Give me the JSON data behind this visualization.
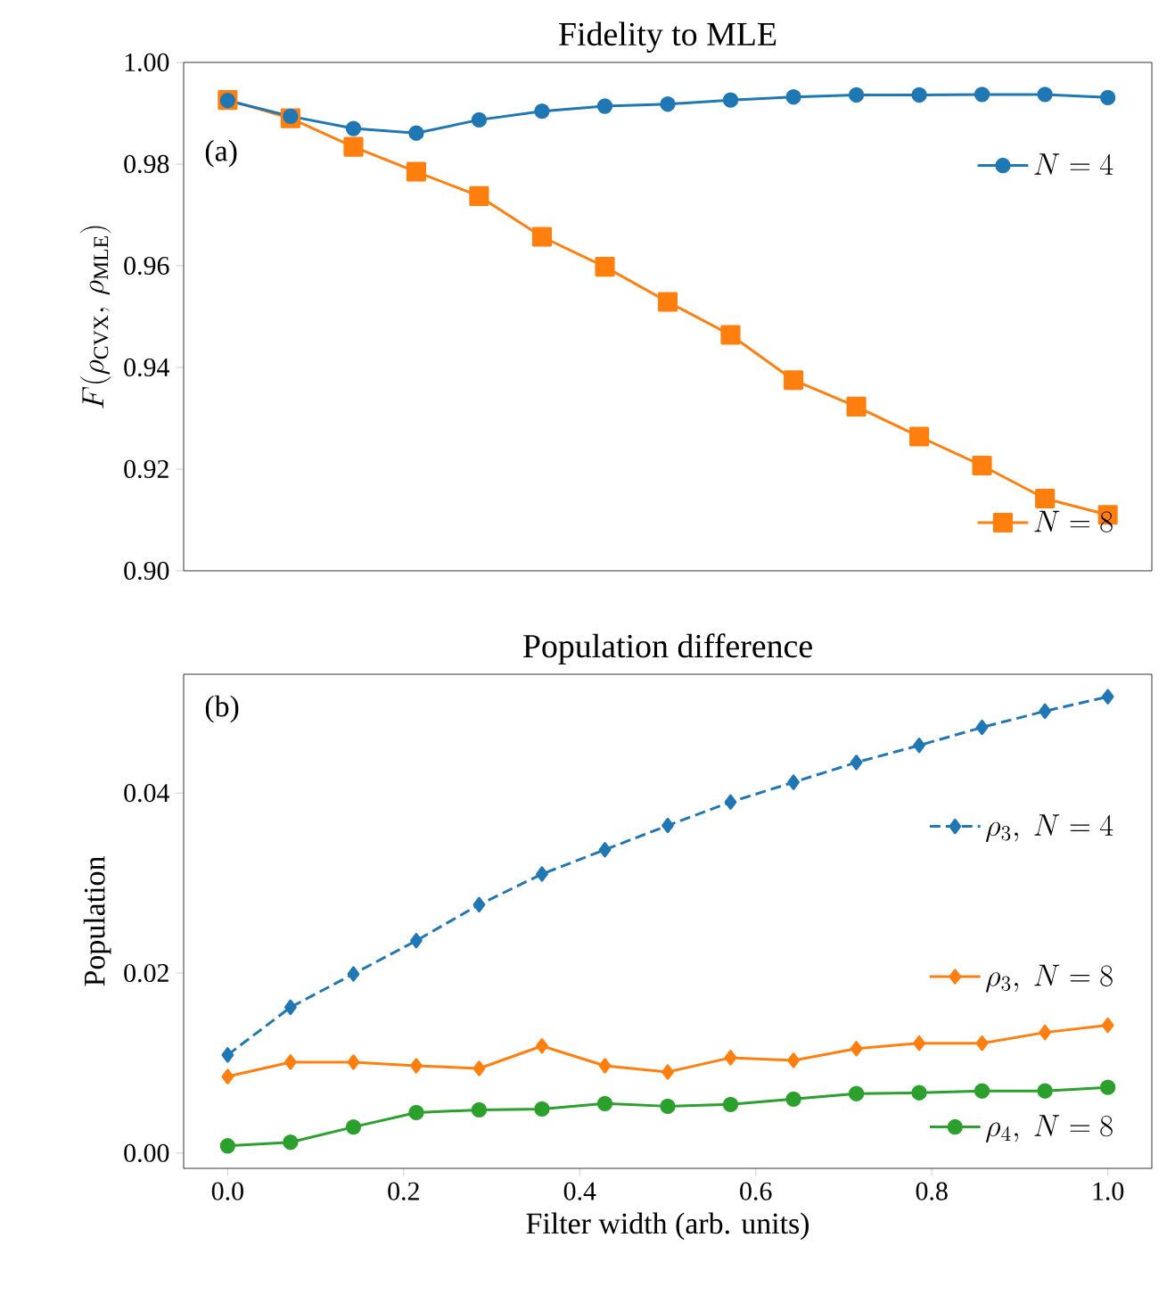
{
  "chart_data": [
    {
      "type": "line",
      "title": "Fidelity to MLE",
      "ylabel": "F(\\rho_{\\mathrm{CVX}},\\, \\rho_{\\mathrm{MLE}})",
      "annotations": [
        "(a)"
      ],
      "x": [
        0,
        0.0714,
        0.1429,
        0.2143,
        0.2857,
        0.3571,
        0.4286,
        0.5,
        0.5714,
        0.6429,
        0.7143,
        0.7857,
        0.8571,
        0.9286,
        1.0
      ],
      "series": [
        {
          "name": "N = 4",
          "color": "#1f77b4",
          "marker": "circle",
          "line_style": "solid",
          "values": [
            0.9925,
            0.9894,
            0.987,
            0.9861,
            0.9887,
            0.9904,
            0.9914,
            0.9918,
            0.9926,
            0.9932,
            0.9936,
            0.9936,
            0.9937,
            0.9937,
            0.9931
          ]
        },
        {
          "name": "N = 8",
          "color": "#ff7f0e",
          "marker": "square",
          "line_style": "solid",
          "values": [
            0.9926,
            0.989,
            0.9834,
            0.9785,
            0.9737,
            0.9657,
            0.9598,
            0.9529,
            0.9464,
            0.9375,
            0.9323,
            0.9264,
            0.9207,
            0.9142,
            0.911
          ]
        }
      ],
      "xlim": [
        -0.05,
        1.05
      ],
      "ylim": [
        0.9,
        1.0
      ],
      "yticks": [
        {
          "value": 0.9,
          "label": "0.90"
        },
        {
          "value": 0.92,
          "label": "0.92"
        },
        {
          "value": 0.94,
          "label": "0.94"
        },
        {
          "value": 0.96,
          "label": "0.96"
        },
        {
          "value": 0.98,
          "label": "0.98"
        },
        {
          "value": 1.0,
          "label": "1.00"
        }
      ],
      "tick_labels": "y",
      "legend": "right",
      "grid": false
    },
    {
      "type": "line",
      "title": "Population difference",
      "xlabel": "Filter width (arb. units)",
      "ylabel": "Population",
      "annotations": [
        "(b)"
      ],
      "x": [
        0,
        0.0714,
        0.1429,
        0.2143,
        0.2857,
        0.3571,
        0.4286,
        0.5,
        0.5714,
        0.6429,
        0.7143,
        0.7857,
        0.8571,
        0.9286,
        1.0
      ],
      "series": [
        {
          "name": "\\rho_3,\\ N = 4",
          "color": "#1f77b4",
          "marker": "diamond",
          "line_style": "dashed",
          "values": [
            0.0109,
            0.0162,
            0.0199,
            0.0236,
            0.0276,
            0.031,
            0.0337,
            0.0364,
            0.039,
            0.0412,
            0.0434,
            0.0453,
            0.0473,
            0.0491,
            0.0507
          ]
        },
        {
          "name": "\\rho_3,\\ N = 8",
          "color": "#ff7f0e",
          "marker": "diamond",
          "line_style": "solid",
          "values": [
            0.0085,
            0.0101,
            0.0101,
            0.0097,
            0.0094,
            0.0119,
            0.0097,
            0.009,
            0.0106,
            0.0103,
            0.0116,
            0.0122,
            0.0122,
            0.0134,
            0.0142
          ]
        },
        {
          "name": "\\rho_4,\\ N = 8",
          "color": "#2ca02c",
          "marker": "circle",
          "line_style": "solid",
          "values": [
            0.0008,
            0.0012,
            0.0029,
            0.0045,
            0.0048,
            0.0049,
            0.0055,
            0.0052,
            0.0054,
            0.006,
            0.0066,
            0.0067,
            0.0069,
            0.0069,
            0.0073
          ]
        }
      ],
      "xlim": [
        -0.05,
        1.05
      ],
      "ylim": [
        -0.0017,
        0.0532
      ],
      "xticks": [
        {
          "value": 0.0,
          "label": "0.0"
        },
        {
          "value": 0.2,
          "label": "0.2"
        },
        {
          "value": 0.4,
          "label": "0.4"
        },
        {
          "value": 0.6,
          "label": "0.6"
        },
        {
          "value": 0.8,
          "label": "0.8"
        },
        {
          "value": 1.0,
          "label": "1.0"
        }
      ],
      "yticks": [
        {
          "value": 0.0,
          "label": "0.00"
        },
        {
          "value": 0.02,
          "label": "0.02"
        },
        {
          "value": 0.04,
          "label": "0.04"
        }
      ],
      "legend": "right",
      "grid": false
    }
  ]
}
